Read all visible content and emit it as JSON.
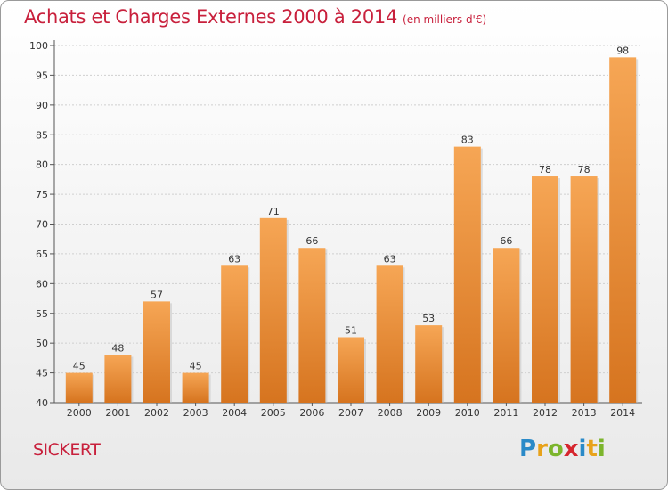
{
  "title": "Achats et Charges Externes 2000 à 2014",
  "unit_note": "(en milliers d'€)",
  "commune": "SICKERT",
  "logo_letters": [
    {
      "char": "P",
      "color": "#2a8ac8"
    },
    {
      "char": "r",
      "color": "#e8a21a"
    },
    {
      "char": "o",
      "color": "#7cb52c"
    },
    {
      "char": "x",
      "color": "#d6262e"
    },
    {
      "char": "i",
      "color": "#2a8ac8"
    },
    {
      "char": "t",
      "color": "#e8a21a"
    },
    {
      "char": "i",
      "color": "#7cb52c"
    }
  ],
  "colors": {
    "title": "#c8203c",
    "bar_light": "#f6a655",
    "bar_dark": "#d6741f",
    "grid": "#cfcfcf"
  },
  "chart_data": {
    "type": "bar",
    "categories": [
      "2000",
      "2001",
      "2002",
      "2003",
      "2004",
      "2005",
      "2006",
      "2007",
      "2008",
      "2009",
      "2010",
      "2011",
      "2012",
      "2013",
      "2014"
    ],
    "values": [
      45,
      48,
      57,
      45,
      63,
      71,
      66,
      51,
      63,
      53,
      83,
      66,
      78,
      78,
      98
    ],
    "ylim": [
      40,
      100
    ],
    "yticks": [
      40,
      45,
      50,
      55,
      60,
      65,
      70,
      75,
      80,
      85,
      90,
      95,
      100
    ],
    "grid": true,
    "data_labels": true
  }
}
